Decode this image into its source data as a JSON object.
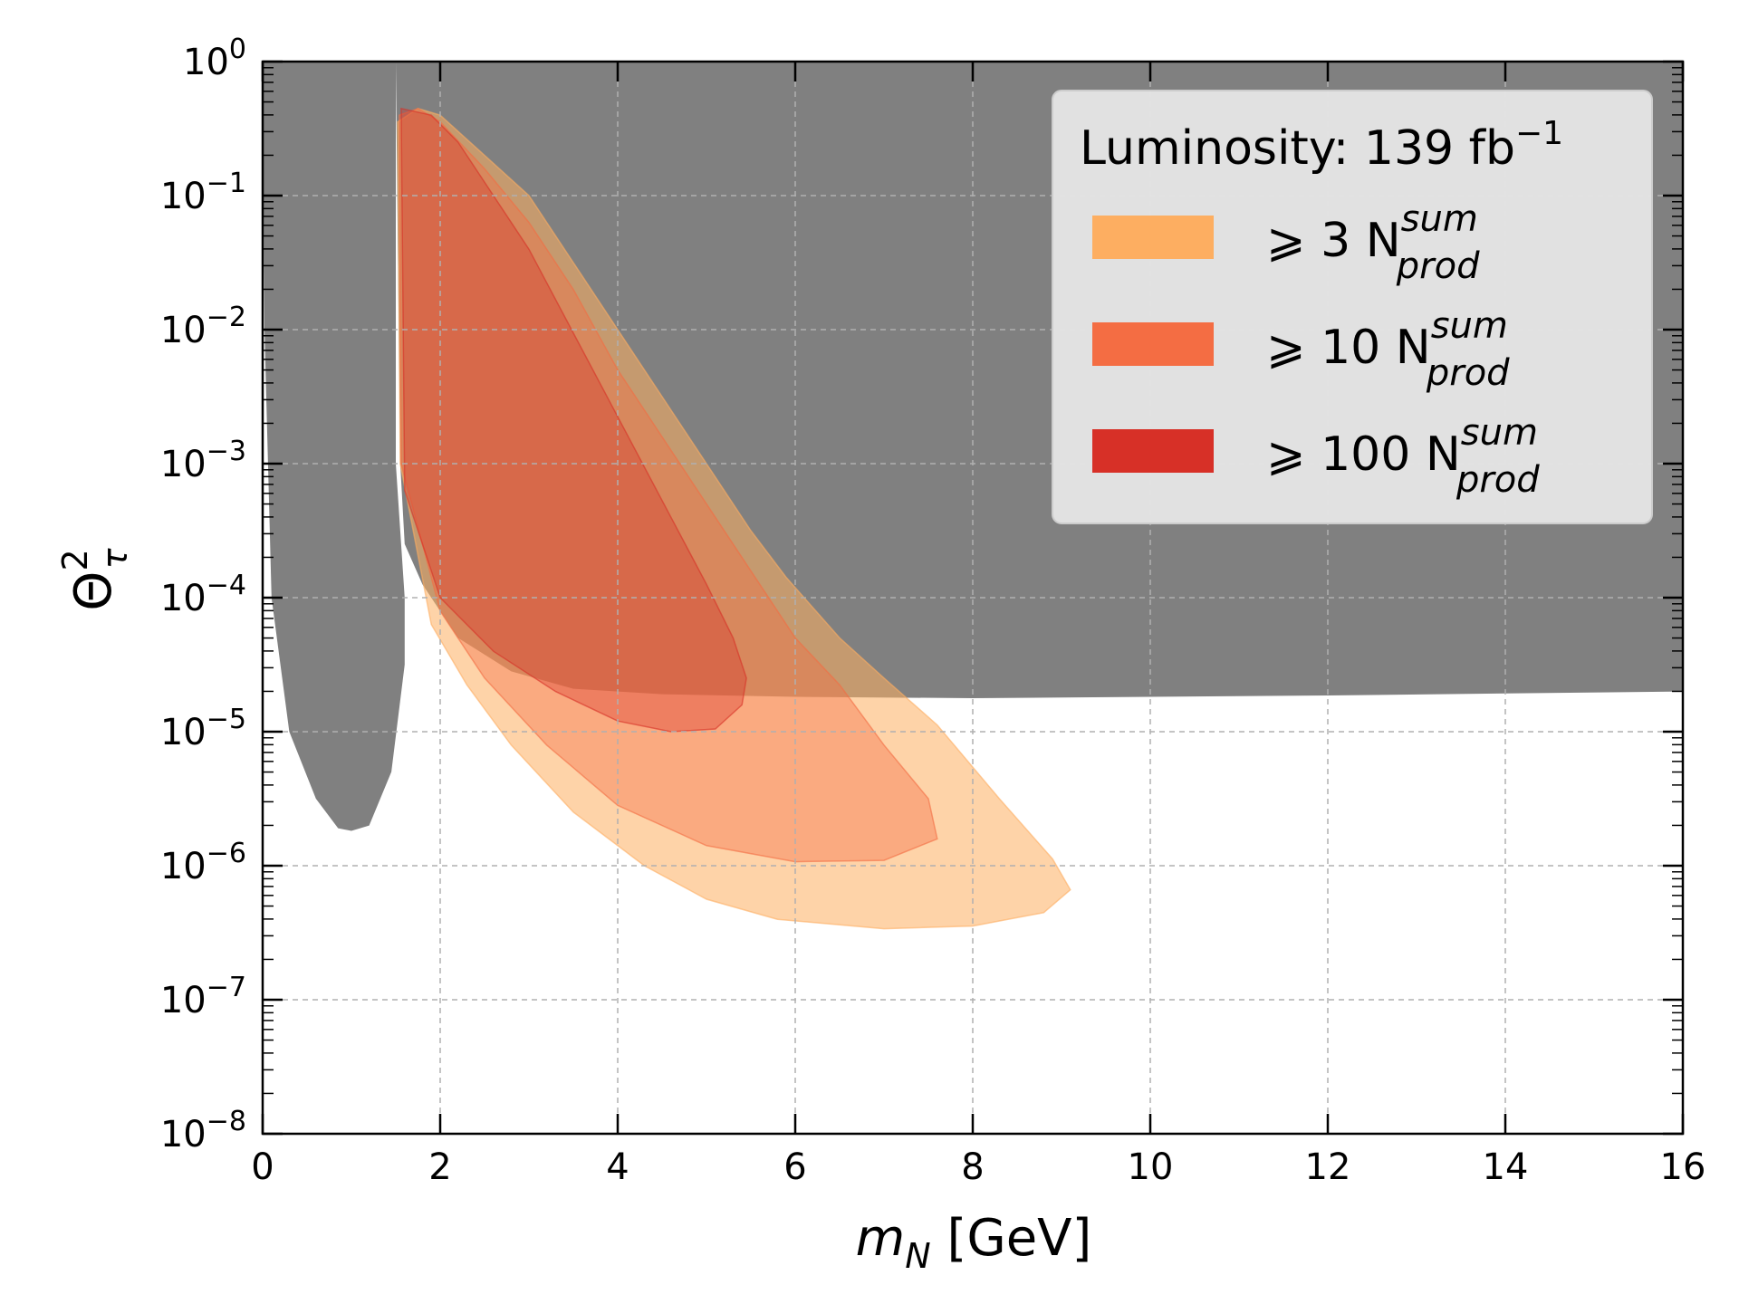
{
  "chart_data": {
    "type": "area",
    "title": "",
    "xlabel": {
      "symbol": "m",
      "subscript": "N",
      "unit": " [GeV]"
    },
    "ylabel": {
      "symbol": "Θ",
      "superscript": "2",
      "subscript": "τ"
    },
    "xlim": [
      0,
      16
    ],
    "ylim_log10": [
      -8,
      0
    ],
    "yscale": "log",
    "grid": true,
    "x_ticks": [
      0,
      2,
      4,
      6,
      8,
      10,
      12,
      14,
      16
    ],
    "x_tick_labels": [
      "0",
      "2",
      "4",
      "6",
      "8",
      "10",
      "12",
      "14",
      "16"
    ],
    "y_ticks": [
      {
        "base": "10",
        "exp": "0"
      },
      {
        "base": "10",
        "exp": "−1"
      },
      {
        "base": "10",
        "exp": "−2"
      },
      {
        "base": "10",
        "exp": "−3"
      },
      {
        "base": "10",
        "exp": "−4"
      },
      {
        "base": "10",
        "exp": "−5"
      },
      {
        "base": "10",
        "exp": "−6"
      },
      {
        "base": "10",
        "exp": "−7"
      },
      {
        "base": "10",
        "exp": "−8"
      }
    ],
    "legend": {
      "location": "top-right",
      "title": {
        "text": "Luminosity: 139 fb",
        "sup": "−1"
      },
      "entries": [
        {
          "prefix": "⩾ 3 N",
          "sup": "sum",
          "sub": "prod",
          "color": "#fdae61"
        },
        {
          "prefix": "⩾ 10 N",
          "sup": "sum",
          "sub": "prod",
          "color": "#f46d43"
        },
        {
          "prefix": "⩾ 100 N",
          "sup": "sum",
          "sub": "prod",
          "color": "#d73027"
        }
      ]
    },
    "excluded_region": {
      "name": "excluded",
      "color": "#808080",
      "left_lobe": [
        [
          0.02,
          -2.0
        ],
        [
          0.1,
          -4.0
        ],
        [
          0.3,
          -5.0
        ],
        [
          0.6,
          -5.5
        ],
        [
          0.85,
          -5.72
        ],
        [
          1.0,
          -5.74
        ],
        [
          1.2,
          -5.7
        ],
        [
          1.45,
          -5.3
        ],
        [
          1.6,
          -4.5
        ],
        [
          1.6,
          -4.0
        ],
        [
          1.5,
          -3.0
        ],
        [
          1.5,
          0
        ]
      ],
      "lower_boundary": [
        [
          1.55,
          -3.0
        ],
        [
          1.6,
          -3.6
        ],
        [
          1.8,
          -3.9
        ],
        [
          2.2,
          -4.3
        ],
        [
          2.8,
          -4.55
        ],
        [
          3.5,
          -4.68
        ],
        [
          4.5,
          -4.72
        ],
        [
          6.0,
          -4.74
        ],
        [
          8.0,
          -4.75
        ],
        [
          12.0,
          -4.73
        ],
        [
          16.0,
          -4.7
        ]
      ]
    },
    "series": [
      {
        "name": "≥ 3 N_prod^sum",
        "color": "#fdae61",
        "opacity": 0.55,
        "boundary": [
          [
            1.52,
            -0.45
          ],
          [
            1.55,
            -3.0
          ],
          [
            1.9,
            -4.2
          ],
          [
            2.3,
            -4.65
          ],
          [
            2.8,
            -5.1
          ],
          [
            3.5,
            -5.6
          ],
          [
            4.3,
            -6.0
          ],
          [
            5.0,
            -6.25
          ],
          [
            5.8,
            -6.4
          ],
          [
            7.0,
            -6.47
          ],
          [
            8.0,
            -6.45
          ],
          [
            8.8,
            -6.35
          ],
          [
            9.1,
            -6.18
          ],
          [
            8.9,
            -5.95
          ],
          [
            8.3,
            -5.5
          ],
          [
            7.6,
            -4.95
          ],
          [
            7.0,
            -4.6
          ],
          [
            6.5,
            -4.3
          ],
          [
            5.9,
            -3.85
          ],
          [
            5.5,
            -3.5
          ],
          [
            5.0,
            -3.0
          ],
          [
            4.5,
            -2.5
          ],
          [
            4.0,
            -2.0
          ],
          [
            3.5,
            -1.5
          ],
          [
            3.0,
            -1.0
          ],
          [
            2.5,
            -0.7
          ],
          [
            2.0,
            -0.4
          ],
          [
            1.75,
            -0.35
          ]
        ]
      },
      {
        "name": "≥ 10 N_prod^sum",
        "color": "#f46d43",
        "opacity": 0.4,
        "boundary": [
          [
            1.54,
            -0.4
          ],
          [
            1.56,
            -3.0
          ],
          [
            2.0,
            -4.1
          ],
          [
            2.5,
            -4.6
          ],
          [
            3.2,
            -5.1
          ],
          [
            4.0,
            -5.55
          ],
          [
            5.0,
            -5.85
          ],
          [
            6.0,
            -5.97
          ],
          [
            7.0,
            -5.96
          ],
          [
            7.6,
            -5.8
          ],
          [
            7.5,
            -5.5
          ],
          [
            7.0,
            -5.1
          ],
          [
            6.5,
            -4.65
          ],
          [
            6.0,
            -4.3
          ],
          [
            5.5,
            -3.8
          ],
          [
            5.0,
            -3.3
          ],
          [
            4.5,
            -2.8
          ],
          [
            4.0,
            -2.3
          ],
          [
            3.5,
            -1.7
          ],
          [
            3.0,
            -1.2
          ],
          [
            2.5,
            -0.8
          ],
          [
            2.0,
            -0.45
          ],
          [
            1.75,
            -0.35
          ]
        ]
      },
      {
        "name": "≥ 100 N_prod^sum",
        "color": "#d73027",
        "opacity": 0.35,
        "boundary": [
          [
            1.56,
            -0.35
          ],
          [
            1.6,
            -3.2
          ],
          [
            2.0,
            -4.0
          ],
          [
            2.6,
            -4.4
          ],
          [
            3.3,
            -4.7
          ],
          [
            4.0,
            -4.92
          ],
          [
            4.6,
            -5.0
          ],
          [
            5.1,
            -4.98
          ],
          [
            5.4,
            -4.8
          ],
          [
            5.45,
            -4.6
          ],
          [
            5.3,
            -4.3
          ],
          [
            5.0,
            -3.9
          ],
          [
            4.6,
            -3.4
          ],
          [
            4.2,
            -2.9
          ],
          [
            3.8,
            -2.4
          ],
          [
            3.4,
            -1.9
          ],
          [
            3.0,
            -1.4
          ],
          [
            2.6,
            -1.0
          ],
          [
            2.2,
            -0.6
          ],
          [
            1.9,
            -0.4
          ]
        ]
      }
    ]
  }
}
